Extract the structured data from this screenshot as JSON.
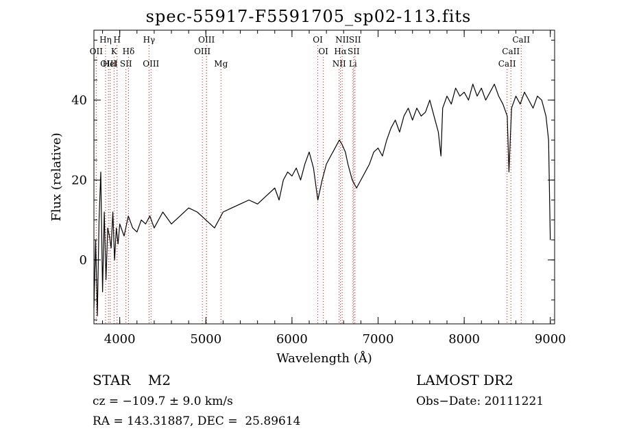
{
  "title": "spec-55917-F5591705_sp02-113.fits",
  "chart_data": {
    "type": "line",
    "title": "spec-55917-F5591705_sp02-113.fits",
    "xlabel": "Wavelength (Å)",
    "ylabel": "Flux (relative)",
    "xlim": [
      3700,
      9050
    ],
    "ylim": [
      -16,
      57.5
    ],
    "x_ticks": [
      "4000",
      "5000",
      "6000",
      "7000",
      "8000",
      "9000"
    ],
    "y_ticks": [
      "0",
      "20",
      "40"
    ],
    "grid": false,
    "series": [
      {
        "x": [
          3700,
          3720,
          3740,
          3760,
          3780,
          3800,
          3820,
          3840,
          3860,
          3880,
          3900,
          3920,
          3940,
          3960,
          3980,
          4000,
          4050,
          4100,
          4150,
          4200,
          4250,
          4300,
          4350,
          4400,
          4450,
          4500,
          4600,
          4700,
          4800,
          4900,
          5000,
          5100,
          5200,
          5300,
          5400,
          5500,
          5600,
          5700,
          5800,
          5850,
          5900,
          5950,
          6000,
          6050,
          6100,
          6150,
          6200,
          6250,
          6300,
          6350,
          6400,
          6450,
          6500,
          6550,
          6580,
          6620,
          6650,
          6700,
          6750,
          6800,
          6850,
          6900,
          6950,
          7000,
          7050,
          7100,
          7150,
          7200,
          7250,
          7300,
          7350,
          7400,
          7450,
          7500,
          7550,
          7600,
          7650,
          7700,
          7730,
          7750,
          7800,
          7850,
          7900,
          7950,
          8000,
          8050,
          8100,
          8150,
          8200,
          8250,
          8300,
          8350,
          8400,
          8450,
          8500,
          8520,
          8550,
          8600,
          8650,
          8700,
          8750,
          8800,
          8850,
          8900,
          8950,
          8980,
          9000
        ],
        "y": [
          -12,
          5,
          -14,
          10,
          22,
          -8,
          12,
          -5,
          8,
          6,
          3,
          12,
          0,
          8,
          4,
          9,
          6,
          11,
          8,
          7,
          10,
          9,
          11,
          8,
          10,
          12,
          9,
          11,
          13,
          12,
          10,
          8,
          12,
          13,
          14,
          15,
          14,
          16,
          18,
          15,
          20,
          22,
          21,
          23,
          20,
          24,
          27,
          23,
          15,
          20,
          24,
          26,
          28,
          30,
          29,
          27,
          24,
          20,
          18,
          20,
          22,
          24,
          27,
          28,
          26,
          30,
          33,
          35,
          32,
          36,
          38,
          35,
          38,
          36,
          37,
          40,
          36,
          32,
          26,
          38,
          41,
          39,
          43,
          41,
          42,
          40,
          44,
          41,
          43,
          40,
          42,
          44,
          41,
          39,
          36,
          22,
          38,
          41,
          39,
          42,
          40,
          38,
          41,
          40,
          36,
          30,
          5
        ]
      }
    ],
    "line_markers": [
      {
        "label": "OII",
        "wavelength": 3727,
        "row": 2
      },
      {
        "label": "Hη",
        "wavelength": 3835,
        "row": 1
      },
      {
        "label": "OIII",
        "wavelength": 3869,
        "row": 3
      },
      {
        "label": "HeI",
        "wavelength": 3889,
        "row": 3
      },
      {
        "label": "K",
        "wavelength": 3934,
        "row": 2
      },
      {
        "label": "H",
        "wavelength": 3969,
        "row": 1
      },
      {
        "label": "SII",
        "wavelength": 4072,
        "row": 3
      },
      {
        "label": "Hδ",
        "wavelength": 4102,
        "row": 2
      },
      {
        "label": "Hγ",
        "wavelength": 4340,
        "row": 1
      },
      {
        "label": "OIII",
        "wavelength": 4363,
        "row": 3
      },
      {
        "label": "OIII",
        "wavelength": 4959,
        "row": 2
      },
      {
        "label": "OIII",
        "wavelength": 5007,
        "row": 1
      },
      {
        "label": "Mg",
        "wavelength": 5175,
        "row": 3
      },
      {
        "label": "OI",
        "wavelength": 6300,
        "row": 1
      },
      {
        "label": "OI",
        "wavelength": 6364,
        "row": 2
      },
      {
        "label": "NII",
        "wavelength": 6548,
        "row": 3
      },
      {
        "label": "Hα",
        "wavelength": 6563,
        "row": 2
      },
      {
        "label": "NII",
        "wavelength": 6583,
        "row": 1
      },
      {
        "label": "SII",
        "wavelength": 6716,
        "row": 2
      },
      {
        "label": "Li",
        "wavelength": 6708,
        "row": 3
      },
      {
        "label": "SII",
        "wavelength": 6731,
        "row": 1
      },
      {
        "label": "CaII",
        "wavelength": 8498,
        "row": 3
      },
      {
        "label": "CaII",
        "wavelength": 8542,
        "row": 2
      },
      {
        "label": "CaII",
        "wavelength": 8662,
        "row": 1
      }
    ],
    "marker_color": "#e00000"
  },
  "info": {
    "class": "STAR    M2",
    "cz": "cz = −109.7 ± 9.0 km/s",
    "radec": "RA = 143.31887, DEC =  25.89614",
    "survey": "LAMOST DR2",
    "obs_date": "Obs−Date: 20111221"
  }
}
